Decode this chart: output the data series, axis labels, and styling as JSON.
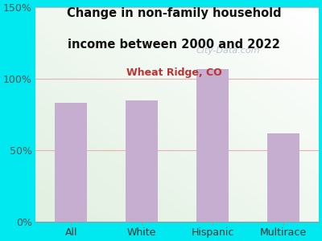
{
  "categories": [
    "All",
    "White",
    "Hispanic",
    "Multirace"
  ],
  "values": [
    83,
    85,
    107,
    62
  ],
  "bar_color": "#c5aed0",
  "title_line1": "Change in non-family household",
  "title_line2": "income between 2000 and 2022",
  "subtitle": "Wheat Ridge, CO",
  "title_color": "#111111",
  "subtitle_color": "#bb3333",
  "background_outer": "#00e8f0",
  "ylim": [
    0,
    150
  ],
  "yticks": [
    0,
    50,
    100,
    150
  ],
  "yticklabels": [
    "0%",
    "50%",
    "100%",
    "150%"
  ],
  "grid_color": "#e8b0b0",
  "watermark": "City-Data.com",
  "watermark_color": "#b0b8c8",
  "tick_color": "#555555",
  "xlabel_color": "#333333"
}
